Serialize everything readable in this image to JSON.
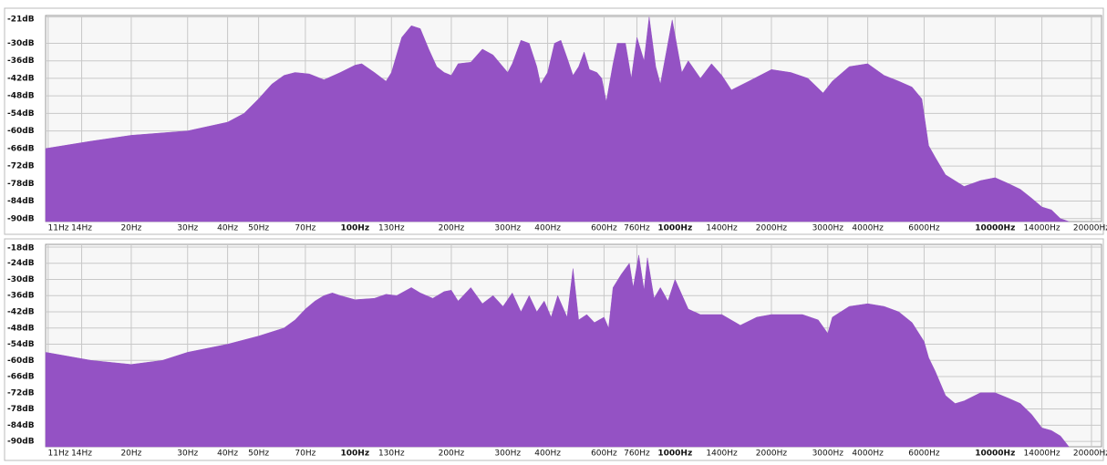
{
  "chart_data": [
    {
      "type": "area",
      "color": "#9452c4",
      "log_x": true,
      "grid": true,
      "xlim": [
        10.8,
        21500
      ],
      "ylim": [
        -91,
        -20.5
      ],
      "xticks": [
        {
          "value": 11,
          "label": "11Hz"
        },
        {
          "value": 14,
          "label": "14Hz"
        },
        {
          "value": 20,
          "label": "20Hz"
        },
        {
          "value": 30,
          "label": "30Hz"
        },
        {
          "value": 40,
          "label": "40Hz"
        },
        {
          "value": 50,
          "label": "50Hz"
        },
        {
          "value": 70,
          "label": "70Hz"
        },
        {
          "value": 100,
          "label": "100Hz"
        },
        {
          "value": 130,
          "label": "130Hz"
        },
        {
          "value": 200,
          "label": "200Hz"
        },
        {
          "value": 300,
          "label": "300Hz"
        },
        {
          "value": 400,
          "label": "400Hz"
        },
        {
          "value": 600,
          "label": "600Hz"
        },
        {
          "value": 760,
          "label": "760Hz"
        },
        {
          "value": 1000,
          "label": "1000Hz"
        },
        {
          "value": 1400,
          "label": "1400Hz"
        },
        {
          "value": 2000,
          "label": "2000Hz"
        },
        {
          "value": 3000,
          "label": "3000Hz"
        },
        {
          "value": 4000,
          "label": "4000Hz"
        },
        {
          "value": 6000,
          "label": "6000Hz"
        },
        {
          "value": 10000,
          "label": "10000Hz"
        },
        {
          "value": 14000,
          "label": "14000Hz"
        },
        {
          "value": 20000,
          "label": "20000Hz"
        }
      ],
      "yticks": [
        {
          "value": -21,
          "label": "-21dB"
        },
        {
          "value": -30,
          "label": "-30dB"
        },
        {
          "value": -36,
          "label": "-36dB"
        },
        {
          "value": -42,
          "label": "-42dB"
        },
        {
          "value": -48,
          "label": "-48dB"
        },
        {
          "value": -54,
          "label": "-54dB"
        },
        {
          "value": -60,
          "label": "-60dB"
        },
        {
          "value": -66,
          "label": "-66dB"
        },
        {
          "value": -72,
          "label": "-72dB"
        },
        {
          "value": -78,
          "label": "-78dB"
        },
        {
          "value": -84,
          "label": "-84dB"
        },
        {
          "value": -90,
          "label": "-90dB"
        }
      ],
      "x": [
        10.8,
        15,
        20,
        30,
        40,
        45,
        50,
        55,
        60,
        65,
        72,
        80,
        90,
        100,
        105,
        115,
        125,
        130,
        140,
        150,
        160,
        170,
        180,
        190,
        200,
        210,
        230,
        250,
        270,
        300,
        310,
        330,
        350,
        370,
        380,
        400,
        420,
        440,
        460,
        480,
        500,
        520,
        540,
        570,
        590,
        610,
        640,
        660,
        700,
        730,
        760,
        800,
        830,
        870,
        900,
        950,
        980,
        1050,
        1100,
        1200,
        1300,
        1400,
        1500,
        1700,
        2000,
        2300,
        2600,
        2900,
        3100,
        3500,
        4000,
        4500,
        5000,
        5500,
        5900,
        6200,
        6500,
        7000,
        8000,
        9000,
        10000,
        11000,
        12000,
        13000,
        14000,
        15000,
        16000,
        17000
      ],
      "values": [
        -66,
        -63.5,
        -61.5,
        -60,
        -57,
        -54,
        -49,
        -44,
        -41,
        -40,
        -40.5,
        -42.5,
        -40,
        -37.5,
        -37,
        -40,
        -43,
        -40,
        -28,
        -24,
        -25,
        -32,
        -38,
        -40,
        -41,
        -37,
        -36.5,
        -32,
        -34,
        -40,
        -37,
        -29,
        -30,
        -38,
        -44,
        -40,
        -30,
        -29,
        -35,
        -41,
        -38,
        -33,
        -39,
        -40,
        -42,
        -50,
        -37,
        -30,
        -30,
        -42,
        -28,
        -36,
        -21,
        -38,
        -44,
        -30,
        -22,
        -40,
        -36,
        -42,
        -37,
        -41,
        -46,
        -43,
        -39,
        -40,
        -42,
        -47,
        -43,
        -38,
        -37,
        -41,
        -43,
        -45,
        -49,
        -65,
        -69,
        -75,
        -79,
        -77,
        -76,
        -78,
        -80,
        -83,
        -86,
        -87,
        -90,
        -91
      ]
    },
    {
      "type": "area",
      "color": "#9452c4",
      "log_x": true,
      "grid": true,
      "xlim": [
        10.8,
        21500
      ],
      "ylim": [
        -92,
        -17
      ],
      "xticks": [
        {
          "value": 11,
          "label": "11Hz"
        },
        {
          "value": 14,
          "label": "14Hz"
        },
        {
          "value": 20,
          "label": "20Hz"
        },
        {
          "value": 30,
          "label": "30Hz"
        },
        {
          "value": 40,
          "label": "40Hz"
        },
        {
          "value": 50,
          "label": "50Hz"
        },
        {
          "value": 70,
          "label": "70Hz"
        },
        {
          "value": 100,
          "label": "100Hz"
        },
        {
          "value": 130,
          "label": "130Hz"
        },
        {
          "value": 200,
          "label": "200Hz"
        },
        {
          "value": 300,
          "label": "300Hz"
        },
        {
          "value": 400,
          "label": "400Hz"
        },
        {
          "value": 600,
          "label": "600Hz"
        },
        {
          "value": 760,
          "label": "760Hz"
        },
        {
          "value": 1000,
          "label": "1000Hz"
        },
        {
          "value": 1400,
          "label": "1400Hz"
        },
        {
          "value": 2000,
          "label": "2000Hz"
        },
        {
          "value": 3000,
          "label": "3000Hz"
        },
        {
          "value": 4000,
          "label": "4000Hz"
        },
        {
          "value": 6000,
          "label": "6000Hz"
        },
        {
          "value": 10000,
          "label": "10000Hz"
        },
        {
          "value": 14000,
          "label": "14000Hz"
        },
        {
          "value": 20000,
          "label": "20000Hz"
        }
      ],
      "yticks": [
        {
          "value": -18,
          "label": "-18dB"
        },
        {
          "value": -24,
          "label": "-24dB"
        },
        {
          "value": -30,
          "label": "-30dB"
        },
        {
          "value": -36,
          "label": "-36dB"
        },
        {
          "value": -42,
          "label": "-42dB"
        },
        {
          "value": -48,
          "label": "-48dB"
        },
        {
          "value": -54,
          "label": "-54dB"
        },
        {
          "value": -60,
          "label": "-60dB"
        },
        {
          "value": -66,
          "label": "-66dB"
        },
        {
          "value": -72,
          "label": "-72dB"
        },
        {
          "value": -78,
          "label": "-78dB"
        },
        {
          "value": -84,
          "label": "-84dB"
        },
        {
          "value": -90,
          "label": "-90dB"
        }
      ],
      "x": [
        10.8,
        15,
        20,
        25,
        30,
        40,
        50,
        60,
        65,
        70,
        75,
        80,
        85,
        90,
        100,
        115,
        125,
        135,
        150,
        160,
        175,
        190,
        200,
        210,
        230,
        250,
        270,
        290,
        310,
        330,
        350,
        370,
        390,
        410,
        430,
        460,
        480,
        500,
        530,
        560,
        600,
        620,
        640,
        680,
        720,
        740,
        770,
        800,
        820,
        860,
        900,
        950,
        1000,
        1100,
        1200,
        1400,
        1600,
        1800,
        2000,
        2500,
        2800,
        3000,
        3100,
        3500,
        4000,
        4500,
        5000,
        5500,
        6000,
        6200,
        6500,
        7000,
        7500,
        8000,
        9000,
        10000,
        11000,
        12000,
        13000,
        14000,
        15000,
        16000,
        17000
      ],
      "values": [
        -57,
        -60,
        -61.5,
        -60,
        -57,
        -54,
        -51,
        -48,
        -45,
        -41,
        -38,
        -36,
        -35,
        -36,
        -37.5,
        -37,
        -35.5,
        -36,
        -33,
        -35,
        -37,
        -34.5,
        -34,
        -38,
        -33,
        -39,
        -36,
        -40,
        -35,
        -42,
        -36,
        -42,
        -38,
        -44,
        -36,
        -44,
        -26,
        -45,
        -43,
        -46,
        -44,
        -48,
        -33,
        -28,
        -24,
        -33,
        -21,
        -34,
        -22,
        -37,
        -33,
        -38,
        -30,
        -41,
        -43,
        -43,
        -47,
        -44,
        -43,
        -43,
        -45,
        -50,
        -44,
        -40,
        -39,
        -40,
        -42,
        -46,
        -53,
        -59,
        -64,
        -73,
        -76,
        -75,
        -72,
        -72,
        -74,
        -76,
        -80,
        -85,
        -86,
        -88,
        -92
      ]
    }
  ]
}
